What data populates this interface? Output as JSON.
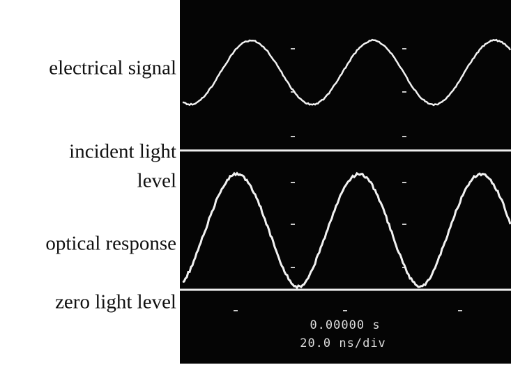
{
  "labels": [
    "electrical signal",
    "incident light",
    "level",
    "optical response",
    "zero light level"
  ],
  "readout": {
    "time": "0.00000 s",
    "timebase": "20.0 ns/div"
  }
}
